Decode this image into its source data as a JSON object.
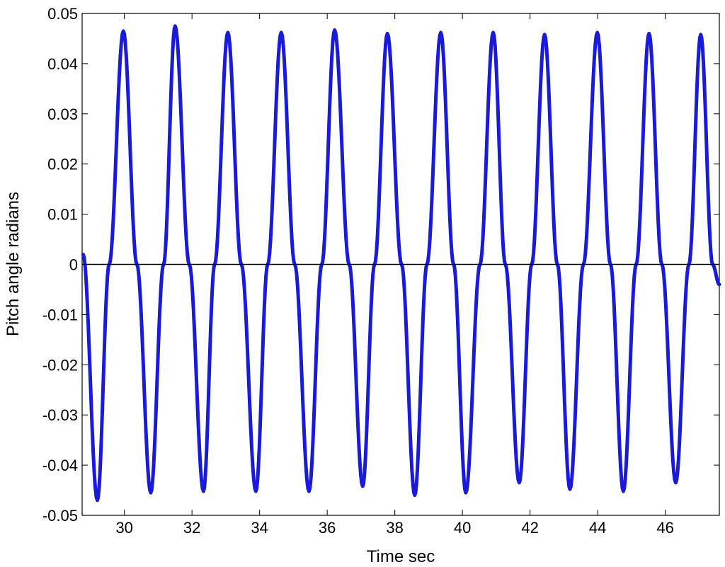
{
  "chart_data": {
    "type": "line",
    "title": "",
    "xlabel": "Time sec",
    "ylabel": "Pitch angle radians",
    "xlim": [
      28.75,
      47.6
    ],
    "ylim": [
      -0.05,
      0.05
    ],
    "x_ticks": [
      30,
      32,
      34,
      36,
      38,
      40,
      42,
      44,
      46
    ],
    "y_ticks": [
      0.05,
      0.04,
      0.03,
      0.02,
      0.01,
      0,
      -0.01,
      -0.02,
      -0.03,
      -0.04,
      -0.05
    ],
    "y_tick_labels": [
      "0.05",
      "0.04",
      "0.03",
      "0.02",
      "0.01",
      "0",
      "-0.01",
      "-0.02",
      "-0.03",
      "-0.04",
      "-0.05"
    ],
    "grid": false,
    "legend": "none",
    "series": [
      {
        "color": "#1a1adc",
        "x": [
          28.78,
          29.2,
          29.55,
          29.97,
          30.37,
          30.78,
          31.16,
          31.5,
          31.92,
          32.34,
          32.67,
          33.06,
          33.46,
          33.89,
          34.24,
          34.64,
          35.04,
          35.46,
          35.84,
          36.22,
          36.65,
          37.05,
          37.4,
          37.78,
          38.2,
          38.59,
          38.95,
          39.36,
          39.74,
          40.1,
          40.52,
          40.91,
          41.27,
          41.68,
          42.05,
          42.43,
          42.81,
          43.18,
          43.58,
          43.99,
          44.38,
          44.76,
          45.14,
          45.52,
          45.9,
          46.31,
          46.7,
          47.05,
          47.4,
          47.6
        ],
        "y": [
          0.002,
          -0.047,
          0.0,
          0.0465,
          0.0,
          -0.0455,
          0.0,
          0.0475,
          0.0,
          -0.0452,
          0.0,
          0.0462,
          0.0,
          -0.0452,
          0.0,
          0.0462,
          0.0,
          -0.0452,
          0.0,
          0.0467,
          0.0,
          -0.0442,
          0.0,
          0.046,
          0.0,
          -0.046,
          0.0,
          0.0462,
          0.0,
          -0.0455,
          0.0,
          0.0462,
          0.0,
          -0.0435,
          0.0,
          0.0458,
          0.0,
          -0.0448,
          0.0,
          0.0462,
          0.0,
          -0.0452,
          0.0,
          0.046,
          0.0,
          -0.0435,
          0.0,
          0.0458,
          0.0,
          -0.004
        ]
      }
    ],
    "reference_line": {
      "y": 0,
      "color": "#000000"
    }
  }
}
